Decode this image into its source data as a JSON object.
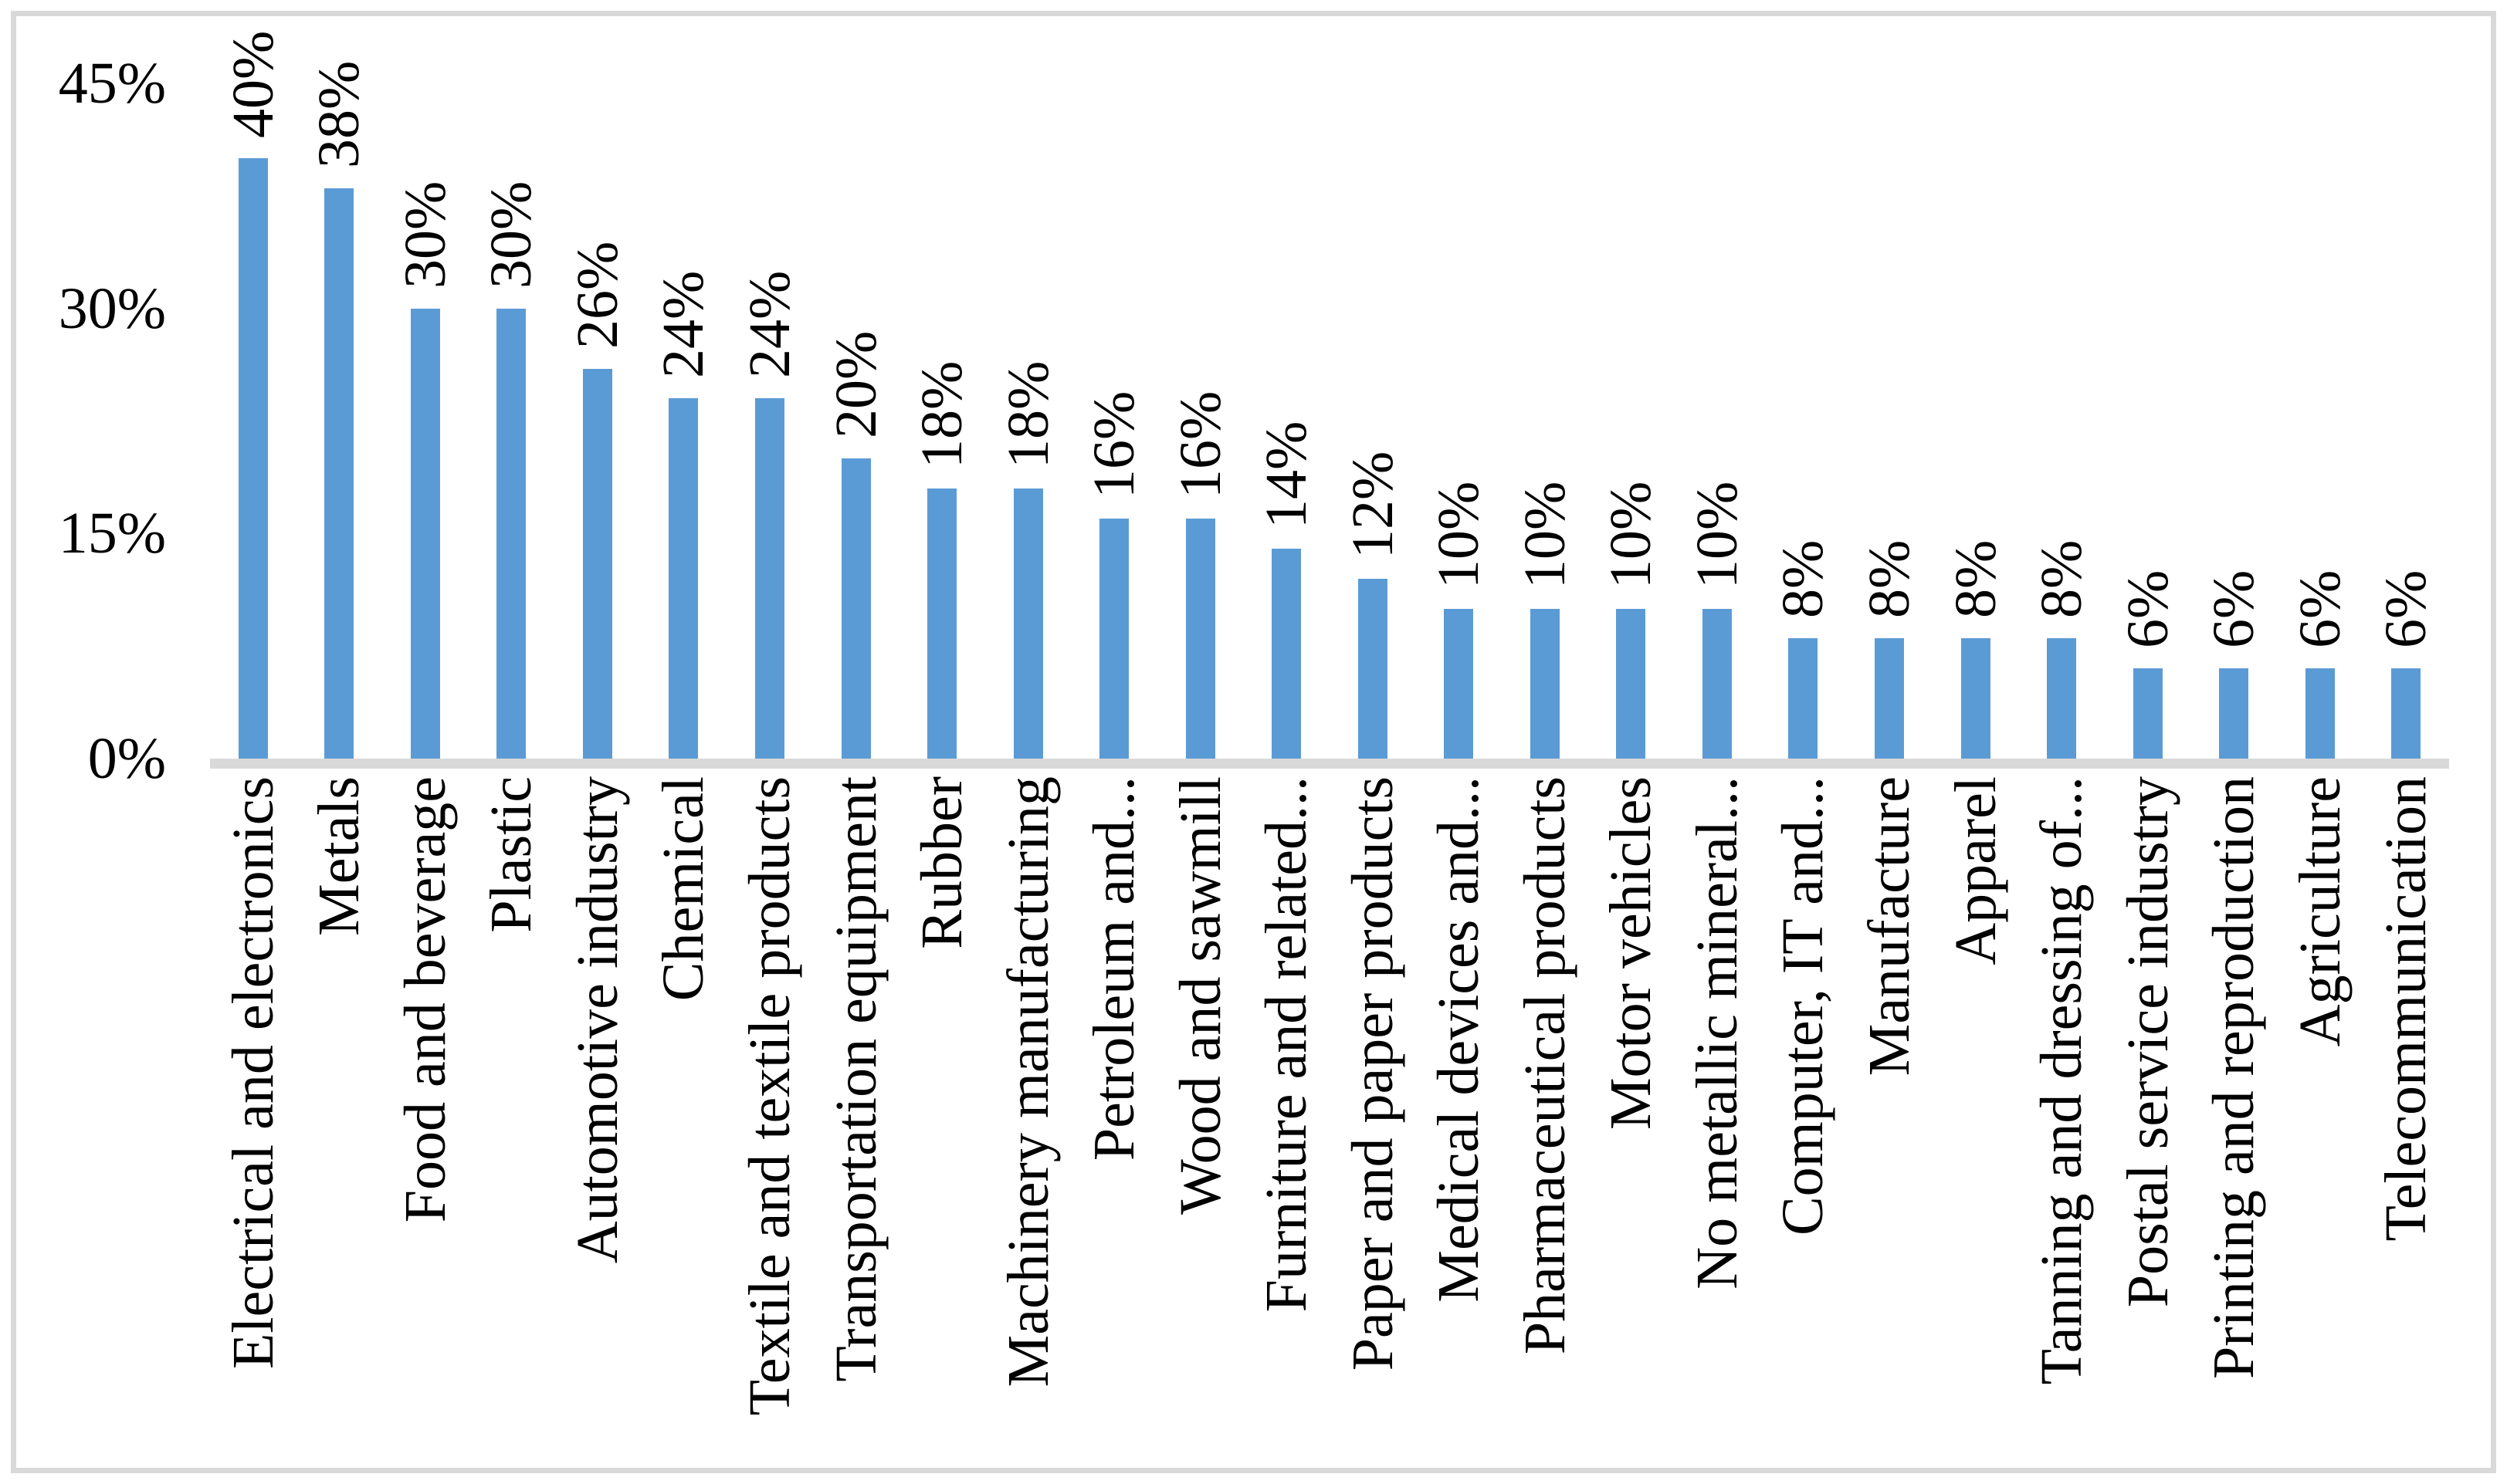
{
  "chart_data": {
    "type": "bar",
    "title": "",
    "categories": [
      "Electrical and electronics",
      "Metals",
      "Food and beverage",
      "Plastic",
      "Automotive industry",
      "Chemical",
      "Textile and textile products",
      "Transportation equipment",
      "Rubber",
      "Machinery manufacturing",
      "Petroleum and...",
      "Wood and sawmill",
      "Furniture and related...",
      "Paper and paper products",
      "Medical devices and...",
      "Pharmaceutical products",
      "Motor vehicles",
      "No metallic mineral...",
      "Computer, IT and...",
      "Manufacture",
      "Apparel",
      "Tanning and dressing of...",
      "Postal service industry",
      "Printing and reproduction",
      "Agriculture",
      "Telecommunication"
    ],
    "values": [
      40,
      38,
      30,
      30,
      26,
      24,
      24,
      20,
      18,
      18,
      16,
      16,
      14,
      12,
      10,
      10,
      10,
      10,
      8,
      8,
      8,
      8,
      6,
      6,
      6,
      6
    ],
    "bar_labels": [
      "40%",
      "38%",
      "30%",
      "30%",
      "26%",
      "24%",
      "24%",
      "20%",
      "18%",
      "18%",
      "16%",
      "16%",
      "14%",
      "12%",
      "10%",
      "10%",
      "10%",
      "10%",
      "8%",
      "8%",
      "8%",
      "8%",
      "6%",
      "6%",
      "6%",
      "6%"
    ],
    "y_axis": {
      "ticks": [
        "0%",
        "15%",
        "30%",
        "45%"
      ],
      "tick_values": [
        0,
        15,
        30,
        45
      ]
    },
    "ylim": [
      0,
      45
    ],
    "grid": false,
    "legend": "none",
    "category_label_rotation_degrees": 90,
    "data_label_rotation_degrees": 90,
    "colors": {
      "bar": "#5B9BD5",
      "axis_line": "#D9D9D9",
      "frame_border": "#D9D9D9",
      "text": "#000000",
      "background": "#FFFFFF"
    }
  }
}
